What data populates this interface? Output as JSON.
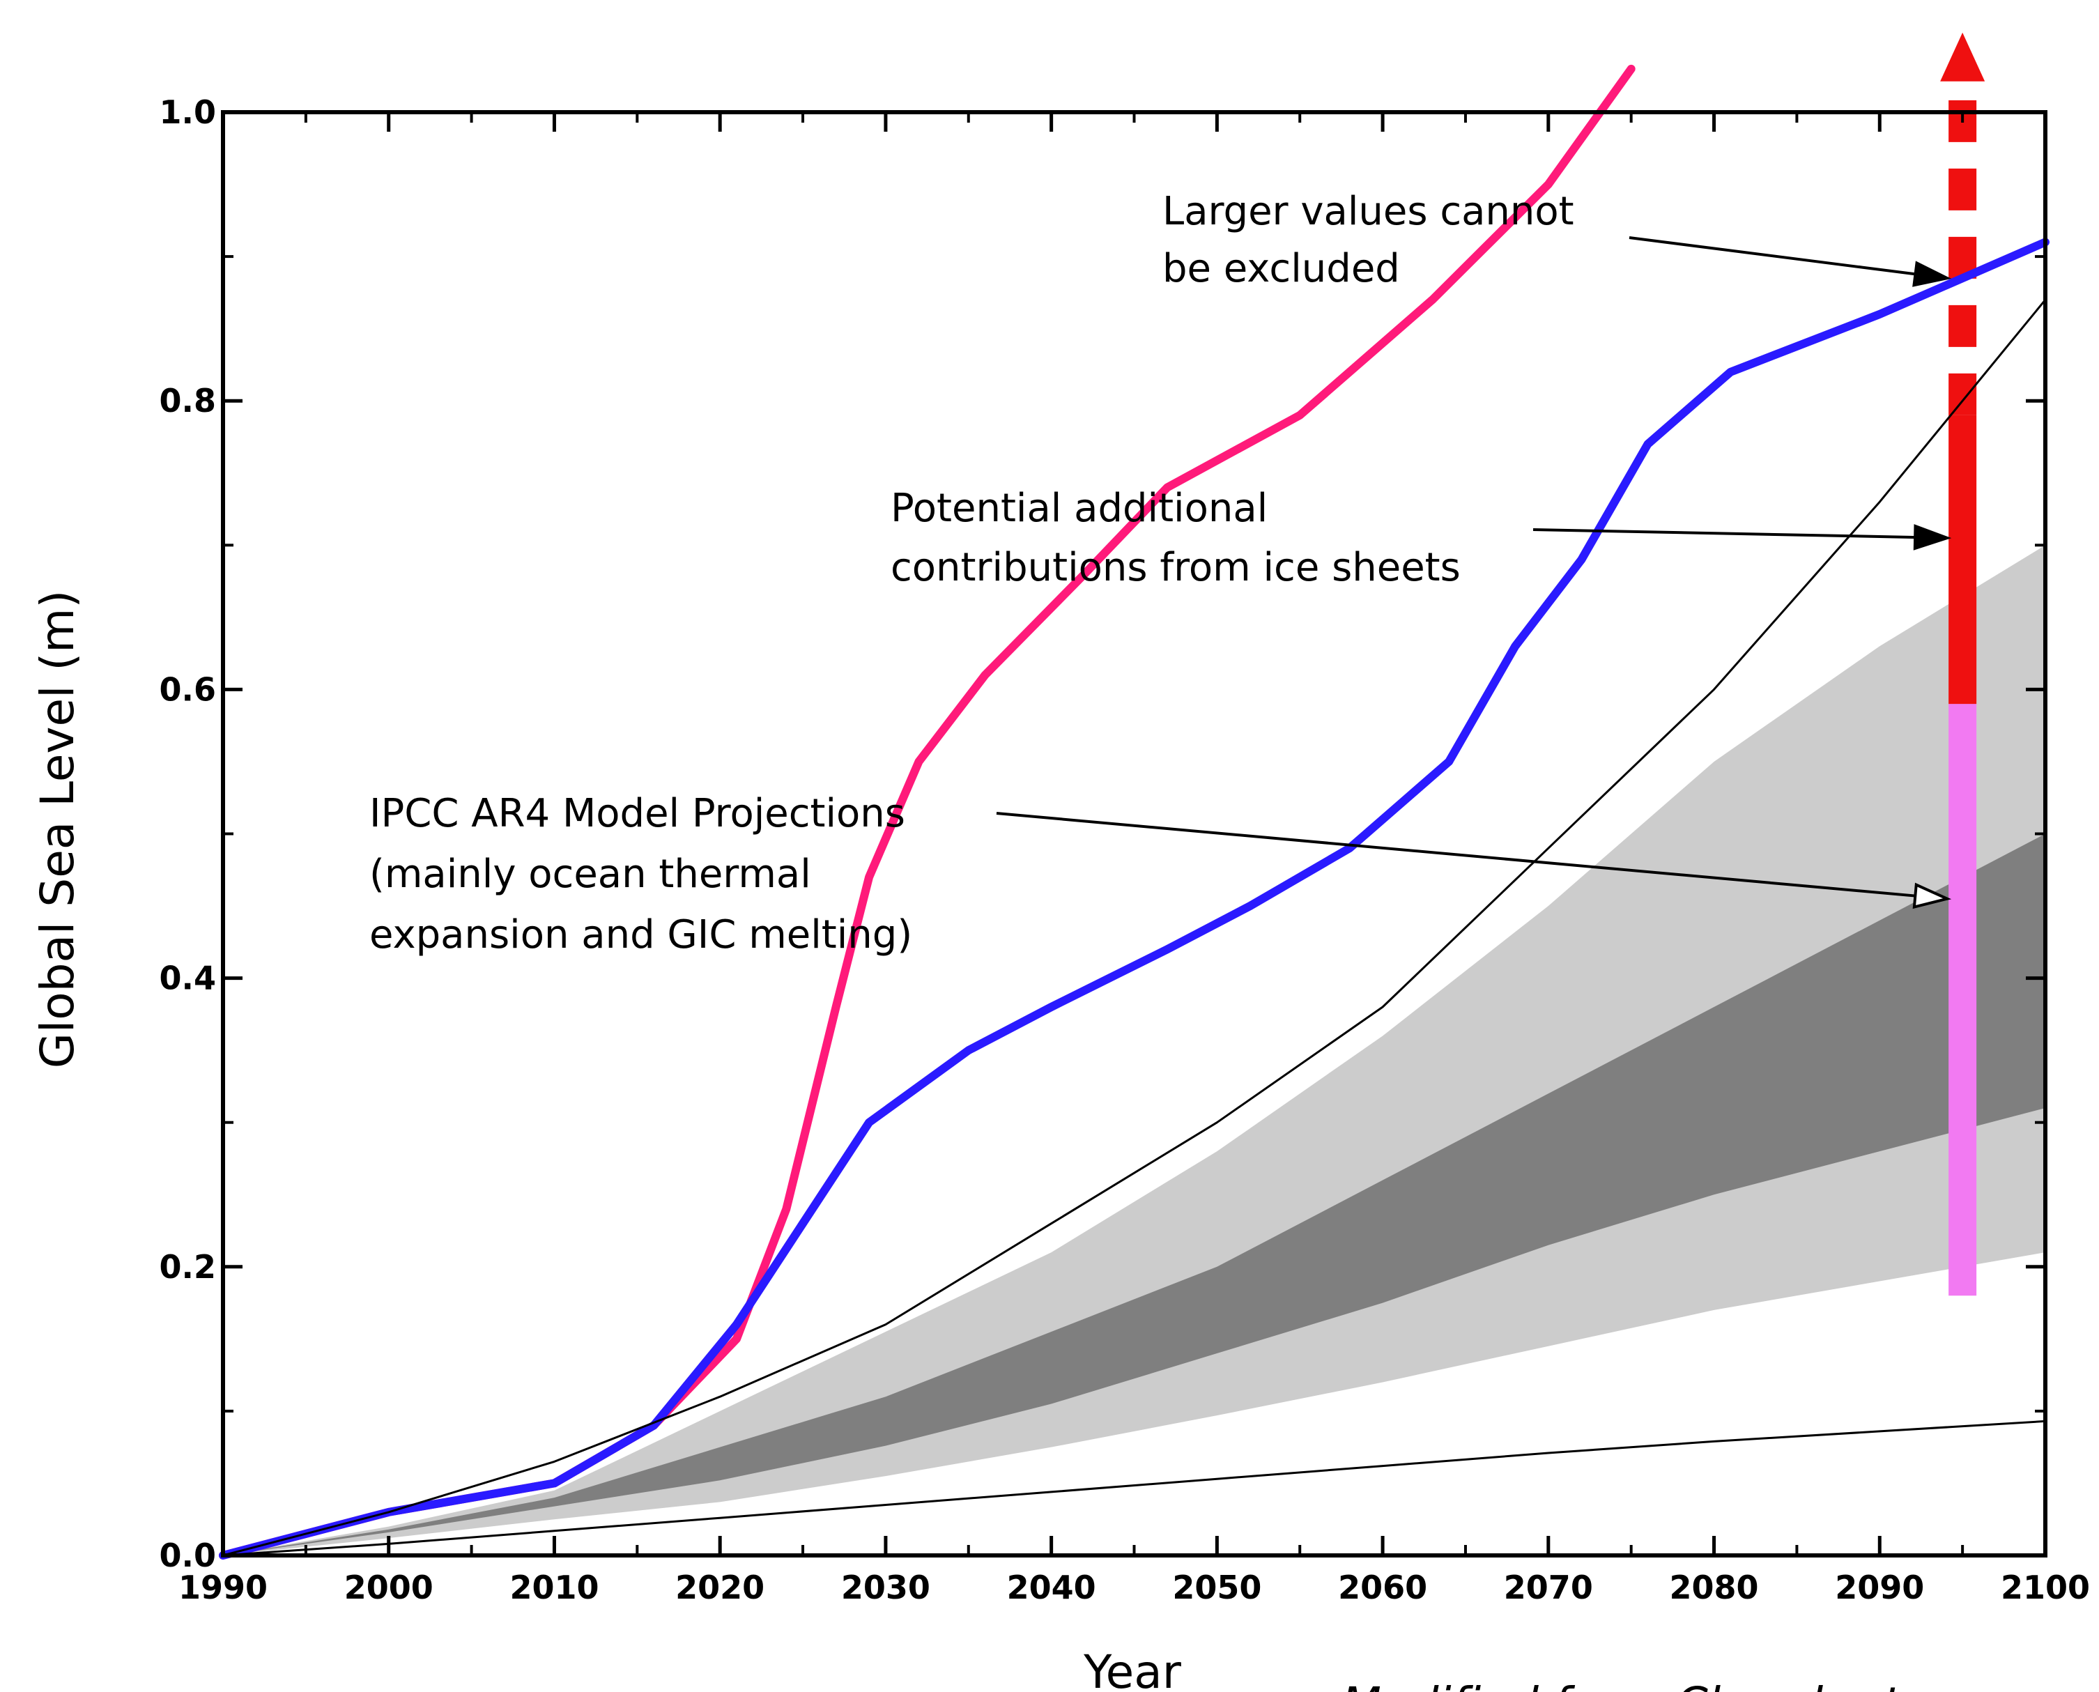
{
  "chart_data": {
    "type": "line",
    "title": "",
    "xlabel": "Year",
    "ylabel": "Global Sea Level (m)",
    "xlim": [
      1990,
      2100
    ],
    "ylim": [
      0.0,
      1.0
    ],
    "x_ticks": [
      "1990",
      "2000",
      "2010",
      "2020",
      "2030",
      "2040",
      "2050",
      "2060",
      "2070",
      "2080",
      "2090",
      "2100"
    ],
    "y_ticks": [
      "0.0",
      "0.2",
      "0.4",
      "0.6",
      "0.8",
      "1.0"
    ],
    "grid": false,
    "series": [
      {
        "color": "#ff1a7a",
        "x": [
          1990,
          2000,
          2010,
          2016,
          2021,
          2024,
          2027,
          2029,
          2032,
          2036,
          2042,
          2047,
          2055,
          2063,
          2070,
          2075
        ],
        "y": [
          0.0,
          0.03,
          0.05,
          0.09,
          0.15,
          0.24,
          0.38,
          0.47,
          0.55,
          0.61,
          0.68,
          0.74,
          0.79,
          0.87,
          0.95,
          1.03
        ]
      },
      {
        "color": "#2a1aff",
        "x": [
          1990,
          2000,
          2010,
          2016,
          2021,
          2025,
          2029,
          2035,
          2040,
          2047,
          2052,
          2058,
          2064,
          2068,
          2072,
          2076,
          2081,
          2090,
          2100
        ],
        "y": [
          0.0,
          0.03,
          0.05,
          0.09,
          0.16,
          0.23,
          0.3,
          0.35,
          0.38,
          0.42,
          0.45,
          0.49,
          0.55,
          0.63,
          0.69,
          0.77,
          0.82,
          0.86,
          0.91
        ]
      },
      {
        "color": "#000000",
        "x": [
          1990,
          2000,
          2010,
          2020,
          2030,
          2040,
          2050,
          2060,
          2070,
          2080,
          2090,
          2100
        ],
        "y": [
          0.0,
          0.03,
          0.065,
          0.11,
          0.16,
          0.23,
          0.3,
          0.38,
          0.49,
          0.6,
          0.73,
          0.87
        ]
      },
      {
        "color": "#000000",
        "x": [
          1990,
          2000,
          2010,
          2020,
          2030,
          2040,
          2050,
          2060,
          2070,
          2080,
          2090,
          2100
        ],
        "y": [
          0.0,
          0.008,
          0.017,
          0.026,
          0.035,
          0.044,
          0.053,
          0.062,
          0.071,
          0.079,
          0.086,
          0.093
        ]
      }
    ],
    "bands": [
      {
        "color": "#cccccc",
        "x": [
          1990,
          2000,
          2010,
          2020,
          2030,
          2040,
          2050,
          2060,
          2070,
          2080,
          2090,
          2100
        ],
        "lower": [
          0.0,
          0.012,
          0.025,
          0.037,
          0.055,
          0.075,
          0.097,
          0.12,
          0.145,
          0.17,
          0.19,
          0.21
        ],
        "upper": [
          0.0,
          0.02,
          0.045,
          0.1,
          0.155,
          0.21,
          0.28,
          0.36,
          0.45,
          0.55,
          0.63,
          0.7
        ]
      },
      {
        "color": "#7f7f7f",
        "x": [
          1990,
          2000,
          2010,
          2020,
          2030,
          2040,
          2050,
          2060,
          2070,
          2080,
          2090,
          2100
        ],
        "lower": [
          0.0,
          0.016,
          0.034,
          0.052,
          0.076,
          0.105,
          0.14,
          0.175,
          0.215,
          0.25,
          0.28,
          0.31
        ],
        "upper": [
          0.0,
          0.018,
          0.04,
          0.075,
          0.11,
          0.155,
          0.2,
          0.26,
          0.32,
          0.38,
          0.44,
          0.5
        ]
      }
    ],
    "range_bar": {
      "x": 2095,
      "pink": [
        0.18,
        0.59
      ],
      "red": [
        0.59,
        0.79
      ],
      "dashed_from": 0.79,
      "arrow_to": 1.06,
      "pink_color": "#f27af2",
      "red_color": "#ef1010"
    },
    "annotations": [
      {
        "text_lines": [
          "Larger values cannot",
          "be excluded"
        ],
        "pointer_to": [
          2095,
          0.885
        ]
      },
      {
        "text_lines": [
          "Potential additional",
          "contributions from ice sheets"
        ],
        "pointer_to": [
          2095,
          0.705
        ]
      },
      {
        "text_lines": [
          "IPCC AR4 Model Projections",
          "(mainly ocean thermal",
          "expansion and GIC melting)"
        ],
        "pointer_to": [
          2095,
          0.455
        ]
      }
    ],
    "credit": "Modified from Church et"
  }
}
